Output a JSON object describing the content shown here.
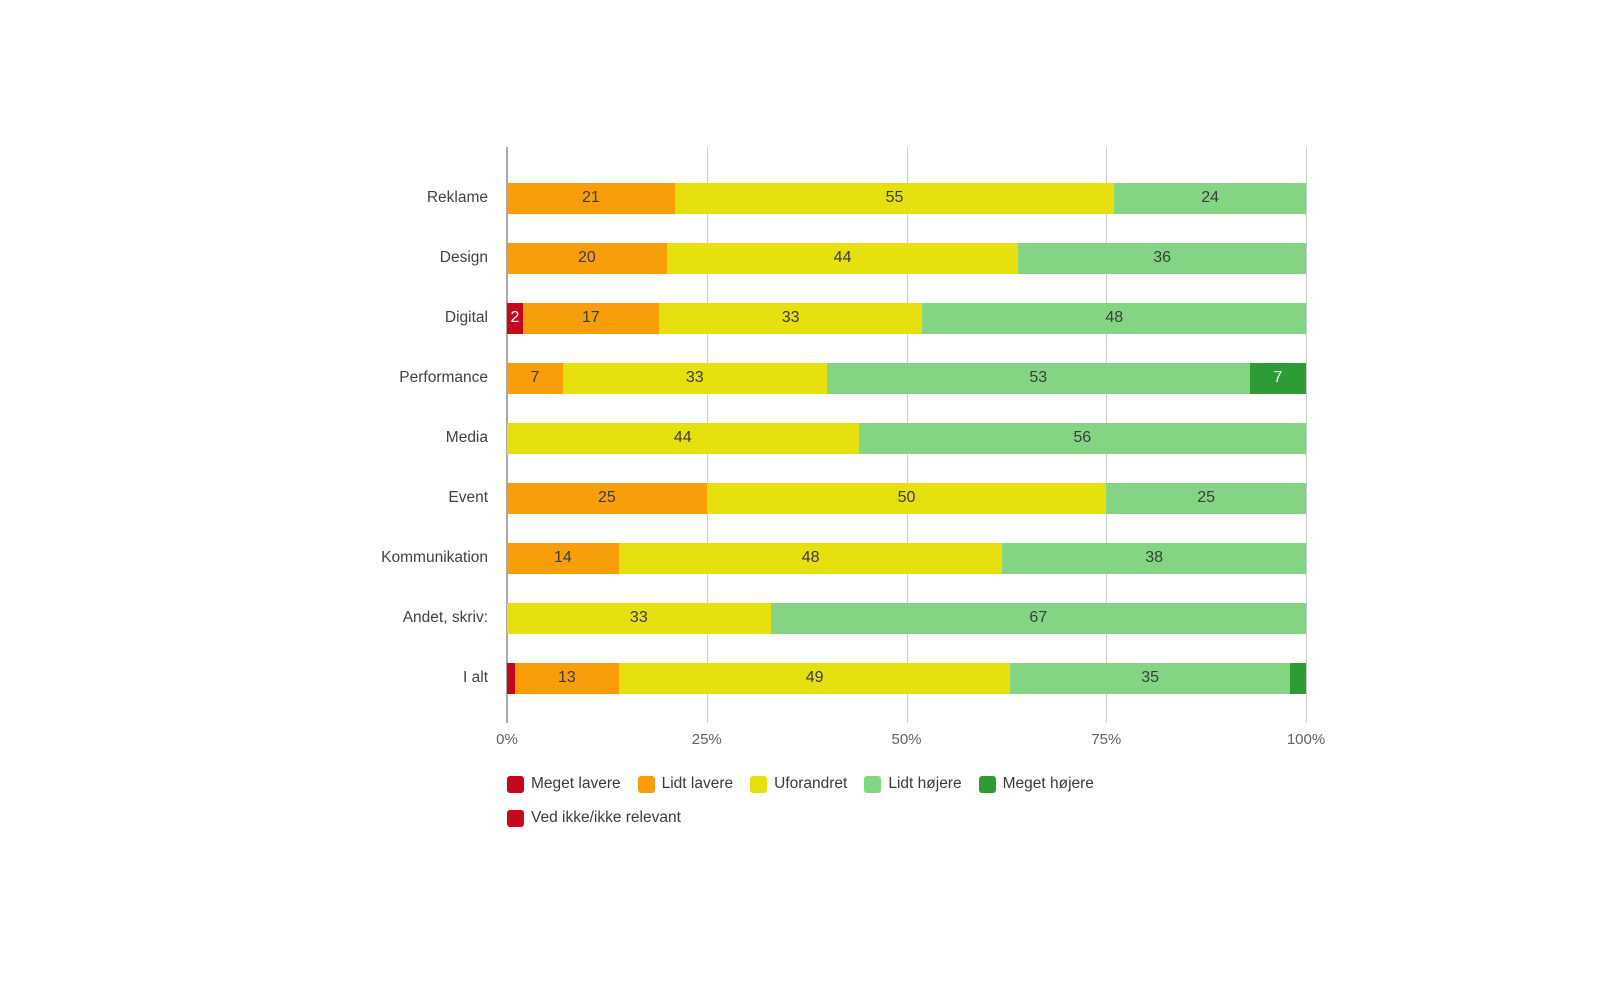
{
  "chart_data": {
    "type": "bar",
    "orientation": "horizontal",
    "stacked": true,
    "title": "",
    "unit": "percent",
    "x_axis": {
      "min": 0,
      "max": 100,
      "grid": true,
      "ticks": [
        {
          "value": 0,
          "label": "0%"
        },
        {
          "value": 25,
          "label": "25%"
        },
        {
          "value": 50,
          "label": "50%"
        },
        {
          "value": 75,
          "label": "75%"
        },
        {
          "value": 100,
          "label": "100%"
        }
      ]
    },
    "series": [
      {
        "name": "Meget lavere",
        "color": "#c5091d",
        "label_color": "#ffffff"
      },
      {
        "name": "Lidt lavere",
        "color": "#fa9d0a",
        "label_color": "#3d3d3d"
      },
      {
        "name": "Uforandret",
        "color": "#e5e00e",
        "label_color": "#3d3d3d"
      },
      {
        "name": "Lidt højere",
        "color": "#83d584",
        "label_color": "#3d3d3d"
      },
      {
        "name": "Meget højere",
        "color": "#2e9c35",
        "label_color": "#ffffff"
      },
      {
        "name": "Ved ikke/ikke relevant",
        "color": "#c5091d",
        "label_color": "#ffffff"
      }
    ],
    "categories": [
      "Reklame",
      "Design",
      "Digital",
      "Performance",
      "Media",
      "Event",
      "Kommunikation",
      "Andet, skriv:",
      "I alt"
    ],
    "rows": [
      {
        "category": "Reklame",
        "segments": [
          {
            "series": 1,
            "value": 21,
            "label": "21"
          },
          {
            "series": 2,
            "value": 55,
            "label": "55"
          },
          {
            "series": 3,
            "value": 24,
            "label": "24"
          }
        ]
      },
      {
        "category": "Design",
        "segments": [
          {
            "series": 1,
            "value": 20,
            "label": "20"
          },
          {
            "series": 2,
            "value": 44,
            "label": "44"
          },
          {
            "series": 3,
            "value": 36,
            "label": "36"
          }
        ]
      },
      {
        "category": "Digital",
        "segments": [
          {
            "series": 0,
            "value": 2,
            "label": "2"
          },
          {
            "series": 1,
            "value": 17,
            "label": "17"
          },
          {
            "series": 2,
            "value": 33,
            "label": "33"
          },
          {
            "series": 3,
            "value": 48,
            "label": "48"
          }
        ]
      },
      {
        "category": "Performance",
        "segments": [
          {
            "series": 1,
            "value": 7,
            "label": "7"
          },
          {
            "series": 2,
            "value": 33,
            "label": "33"
          },
          {
            "series": 3,
            "value": 53,
            "label": "53"
          },
          {
            "series": 4,
            "value": 7,
            "label": "7"
          }
        ]
      },
      {
        "category": "Media",
        "segments": [
          {
            "series": 2,
            "value": 44,
            "label": "44"
          },
          {
            "series": 3,
            "value": 56,
            "label": "56"
          }
        ]
      },
      {
        "category": "Event",
        "segments": [
          {
            "series": 1,
            "value": 25,
            "label": "25"
          },
          {
            "series": 2,
            "value": 50,
            "label": "50"
          },
          {
            "series": 3,
            "value": 25,
            "label": "25"
          }
        ]
      },
      {
        "category": "Kommunikation",
        "segments": [
          {
            "series": 1,
            "value": 14,
            "label": "14"
          },
          {
            "series": 2,
            "value": 48,
            "label": "48"
          },
          {
            "series": 3,
            "value": 38,
            "label": "38"
          }
        ]
      },
      {
        "category": "Andet, skriv:",
        "segments": [
          {
            "series": 2,
            "value": 33,
            "label": "33"
          },
          {
            "series": 3,
            "value": 67,
            "label": "67"
          }
        ]
      },
      {
        "category": "I alt",
        "segments": [
          {
            "series": 0,
            "value": 1,
            "label": ""
          },
          {
            "series": 1,
            "value": 13,
            "label": "13"
          },
          {
            "series": 2,
            "value": 49,
            "label": "49"
          },
          {
            "series": 3,
            "value": 35,
            "label": "35"
          },
          {
            "series": 4,
            "value": 2,
            "label": ""
          }
        ]
      }
    ],
    "legend": {
      "position": "bottom-left",
      "rows": [
        [
          0,
          1,
          2,
          3,
          4
        ],
        [
          5
        ]
      ]
    }
  },
  "colors": {
    "background": "#ffffff",
    "gridline": "#cccccc",
    "axis_line": "#a9a9a9",
    "category_label": "#424242",
    "axis_label": "#616161",
    "legend_label": "#3a3a3a"
  }
}
